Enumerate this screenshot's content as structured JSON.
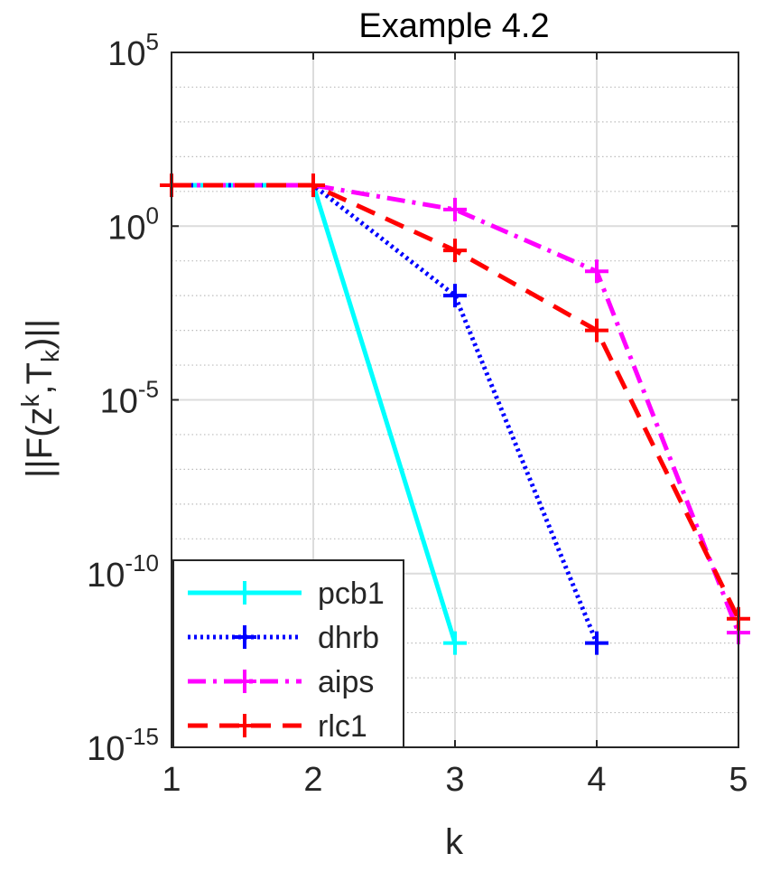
{
  "chart_data": {
    "type": "line",
    "title": "Example 4.2",
    "xlabel": "k",
    "ylabel_parts": {
      "a": "||F(z",
      "b": "k",
      "c": ",T",
      "d": "k",
      "e": ")||"
    },
    "yscale": "log",
    "xlim": [
      1,
      5
    ],
    "ylim": [
      1e-15,
      100000.0
    ],
    "x_ticks": [
      "1",
      "2",
      "3",
      "4",
      "5"
    ],
    "y_ticks": [
      {
        "base": "10",
        "exp": "5"
      },
      {
        "base": "10",
        "exp": "0"
      },
      {
        "base": "10",
        "exp": "-5"
      },
      {
        "base": "10",
        "exp": "-10"
      },
      {
        "base": "10",
        "exp": "-15"
      }
    ],
    "grid": true,
    "legend_position": "bottom-left",
    "series": [
      {
        "name": "pcb1",
        "color": "#00ffff",
        "style": "solid",
        "x": [
          1,
          2,
          3
        ],
        "y": [
          15,
          15,
          1e-12
        ]
      },
      {
        "name": "dhrb",
        "color": "#0000ff",
        "style": "dotted",
        "x": [
          1,
          2,
          3,
          4
        ],
        "y": [
          15,
          15,
          0.01,
          1e-12
        ]
      },
      {
        "name": "aips",
        "color": "#ff00ff",
        "style": "dashdot",
        "x": [
          1,
          2,
          3,
          4,
          5
        ],
        "y": [
          15,
          15,
          3,
          0.05,
          2e-12
        ]
      },
      {
        "name": "rlc1",
        "color": "#ff0000",
        "style": "dashed",
        "x": [
          1,
          2,
          3,
          4,
          5
        ],
        "y": [
          15,
          15,
          0.2,
          0.001,
          5e-12
        ]
      }
    ]
  }
}
